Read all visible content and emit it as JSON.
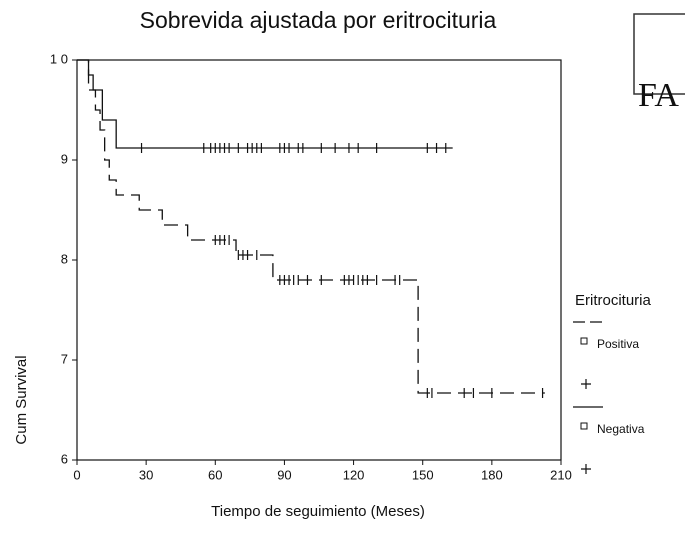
{
  "chart_data": {
    "type": "survival",
    "title": "Sobrevida ajustada por eritrocituria",
    "xlabel": "Tiempo de seguimiento (Meses)",
    "ylabel": "Cum Survival",
    "legend_title": "Eritrocituria",
    "xlim": [
      0,
      210
    ],
    "xticks": [
      0,
      30,
      60,
      90,
      120,
      150,
      180,
      210
    ],
    "ylim": [
      0.6,
      1.0
    ],
    "yticks": [
      {
        "value": 0.6,
        "label": "6"
      },
      {
        "value": 0.7,
        "label": "7"
      },
      {
        "value": 0.8,
        "label": "8"
      },
      {
        "value": 0.9,
        "label": "9"
      },
      {
        "value": 1.0,
        "label": "1 0"
      }
    ],
    "stamp": "FA",
    "series": [
      {
        "name": "Positiva",
        "color": "#111111",
        "line_style": "dashed",
        "x": [
          0,
          5,
          8,
          10,
          12,
          14,
          17,
          27,
          37,
          48,
          69,
          85,
          148,
          203
        ],
        "values": [
          1.0,
          0.97,
          0.95,
          0.93,
          0.9,
          0.88,
          0.865,
          0.85,
          0.835,
          0.82,
          0.805,
          0.78,
          0.667,
          0.667
        ],
        "censored": [
          60,
          62,
          64,
          66,
          70,
          72,
          74,
          78,
          88,
          90,
          92,
          94,
          96,
          100,
          106,
          116,
          118,
          120,
          122,
          124,
          126,
          130,
          138,
          140,
          152,
          154,
          168,
          172,
          180,
          202
        ]
      },
      {
        "name": "Negativa",
        "color": "#111111",
        "line_style": "solid",
        "x": [
          0,
          5,
          7,
          11,
          17,
          163
        ],
        "values": [
          1.0,
          0.985,
          0.97,
          0.94,
          0.912,
          0.912
        ],
        "censored": [
          28,
          55,
          58,
          60,
          62,
          64,
          66,
          70,
          74,
          76,
          78,
          80,
          88,
          90,
          92,
          96,
          98,
          106,
          112,
          118,
          122,
          130,
          152,
          156,
          160
        ]
      }
    ]
  }
}
